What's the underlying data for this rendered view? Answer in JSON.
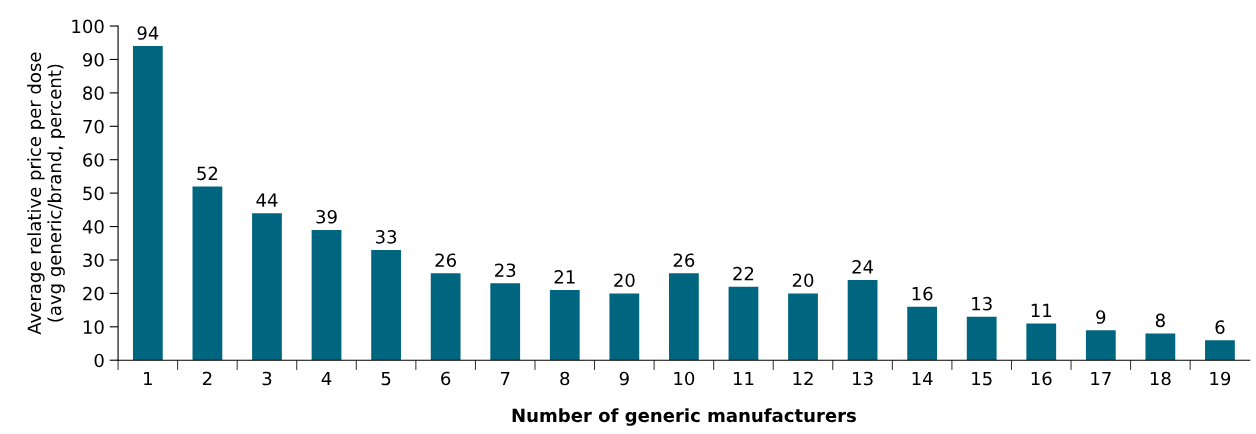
{
  "chart_data": {
    "type": "bar",
    "xlabel": "Number of generic manufacturers",
    "ylabel": "Average relative price per dose\n(avg generic/brand, percent)",
    "categories": [
      "1",
      "2",
      "3",
      "4",
      "5",
      "6",
      "7",
      "8",
      "9",
      "10",
      "11",
      "12",
      "13",
      "14",
      "15",
      "16",
      "17",
      "18",
      "19"
    ],
    "values": [
      94,
      52,
      44,
      39,
      33,
      26,
      23,
      21,
      20,
      26,
      22,
      20,
      24,
      16,
      13,
      11,
      9,
      8,
      6
    ],
    "color": "#00667f",
    "ylim": [
      0,
      100
    ],
    "yticks": [
      0,
      10,
      20,
      30,
      40,
      50,
      60,
      70,
      80,
      90,
      100
    ],
    "grid": false,
    "data_labels": true
  }
}
